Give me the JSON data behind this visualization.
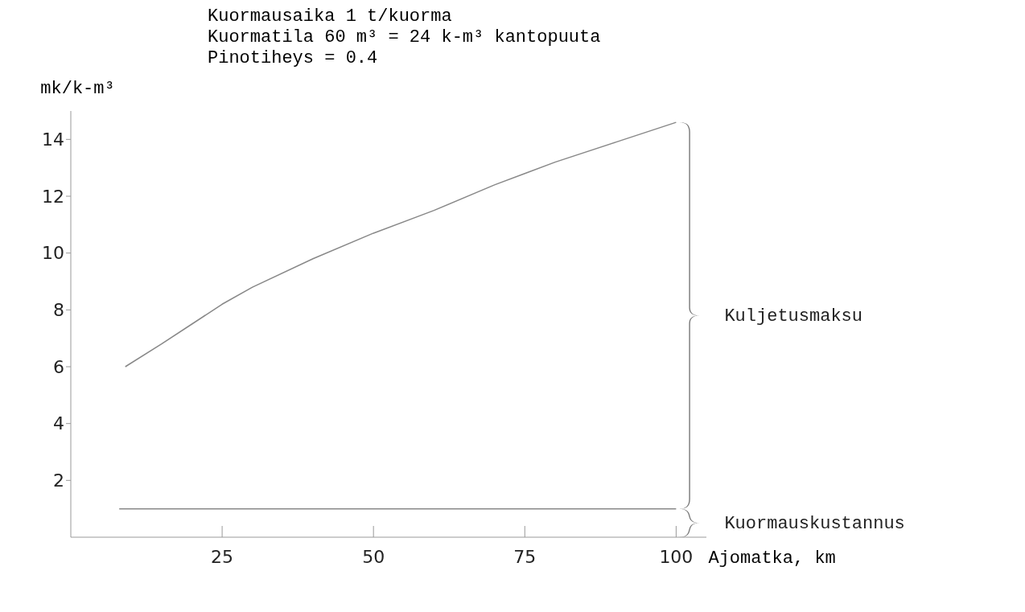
{
  "chart_data": {
    "type": "line",
    "title": "Kuormausaika 1 t/kuorma",
    "subtitle": "Kuormatila 60 m³ = 24 k-m³ kantopuuta",
    "ylabel": "mk/k-m³",
    "xlabel": "Ajomatka, km",
    "annotations": [
      "Pinotiheys = 0.4",
      "Kuljetusmaksu",
      "Kuormauskustannus"
    ],
    "series": [
      {
        "color": "#888888",
        "x": [
          9,
          15,
          20,
          25,
          30,
          40,
          50,
          60,
          70,
          75,
          80,
          90,
          100
        ],
        "values": [
          6.0,
          6.8,
          7.5,
          8.2,
          8.8,
          9.8,
          10.7,
          11.5,
          12.4,
          12.8,
          13.2,
          13.9,
          14.6
        ]
      },
      {
        "color": "#888888",
        "x": [
          8,
          100
        ],
        "values": [
          1.0,
          1.0
        ]
      }
    ],
    "xlim": [
      0,
      105
    ],
    "ylim": [
      0,
      15
    ],
    "xticks": [
      25,
      50,
      75,
      100
    ],
    "yticks": [
      2,
      4,
      6,
      8,
      10,
      12,
      14
    ],
    "grid": false,
    "legend": false,
    "marker": "none",
    "line_style": "solid"
  }
}
